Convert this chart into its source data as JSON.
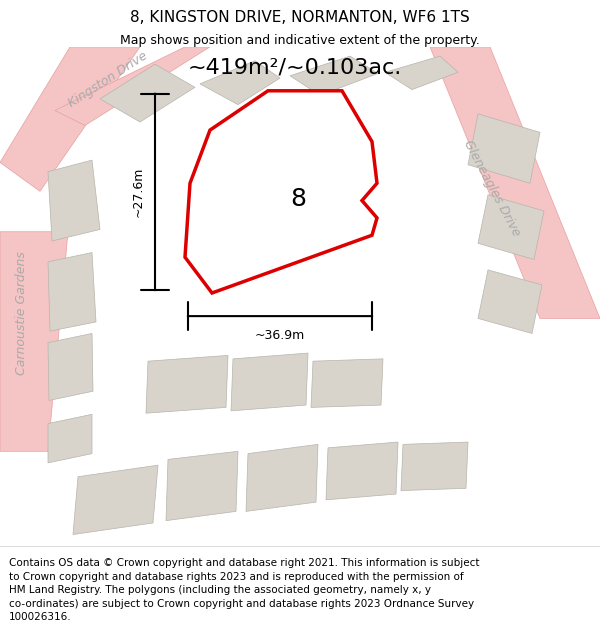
{
  "title": "8, KINGSTON DRIVE, NORMANTON, WF6 1TS",
  "subtitle": "Map shows position and indicative extent of the property.",
  "area_text": "~419m²/~0.103ac.",
  "number_label": "8",
  "dim_width": "~36.9m",
  "dim_height": "~27.6m",
  "background_color": "#f0eeea",
  "road_color": "#f5c4c4",
  "road_edge_color": "#e8a0a0",
  "property_edge": "#dd0000",
  "building_fill": "#d8d4cc",
  "building_edge": "#b8b4ac",
  "street_label_color": "#aaaaaa",
  "footer_lines": [
    "Contains OS data © Crown copyright and database right 2021. This information is subject",
    "to Crown copyright and database rights 2023 and is reproduced with the permission of",
    "HM Land Registry. The polygons (including the associated geometry, namely x, y",
    "co-ordinates) are subject to Crown copyright and database rights 2023 Ordnance Survey",
    "100026316."
  ],
  "title_fontsize": 11,
  "subtitle_fontsize": 9,
  "area_fontsize": 16,
  "number_fontsize": 18,
  "footer_fontsize": 7.5,
  "street_fontsize": 9
}
